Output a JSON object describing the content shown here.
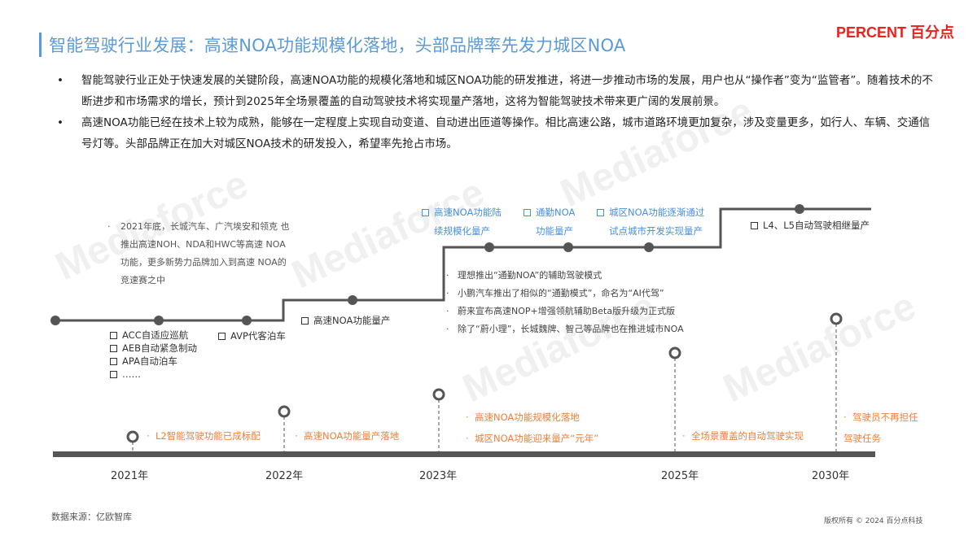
{
  "header": {
    "title": "智能驾驶行业发展：高速NOA功能规模化落地，头部品牌率先发力城区NOA",
    "logo": "PERCENT 百分点"
  },
  "bullets": [
    "智能驾驶行业正处于快速发展的关键阶段，高速NOA功能的规模化落地和城区NOA功能的研发推进，将进一步推动市场的发展，用户也从“操作者”变为“监管者”。随着技术的不断进步和市场需求的增长，预计到2025年全场景覆盖的自动驾驶技术将实现量产落地，这将为智能驾驶技术带来更广阔的发展前景。",
    "高速NOA功能已经在技术上较为成熟，能够在一定程度上实现自动变道、自动进出匝道等操作。相比高速公路，城市道路环境更加复杂，涉及变量更多，如行人、车辆、交通信号灯等。头部品牌正在加大对城区NOA技术的研发投入，希望率先抢占市场。"
  ],
  "upper": {
    "note_2021": "2021年底，长城汽车、广汽埃安和领克 也推出高速NOH、NDA和HWC等高速 NOA功能，更多新势力品牌加入到高速 NOA的竞速赛之中",
    "basic_features": [
      "ACC自适应巡航",
      "AEB自动紧急制动",
      "APA自动泊车",
      "……"
    ],
    "avp": "AVP代客泊车",
    "highway_noa": "高速NOA功能量产",
    "blue_items": [
      [
        "高速NOA功能陆",
        "续规模化量产"
      ],
      [
        "通勤NOA",
        "功能量产"
      ],
      [
        "城区NOA功能逐渐通过",
        "试点城市开发实现量产"
      ]
    ],
    "l4l5": "L4、L5自动驾驶相继量产",
    "mid_notes": [
      "理想推出“通勤NOA”的辅助驾驶模式",
      "小鹏汽车推出了相似的“通勤模式”，命名为“AI代驾”",
      "蔚来宣布高速NOP+增强领航辅助Beta版升级为正式版",
      "除了“蔚小理”，长城魏牌、智己等品牌也在推进城市NOA"
    ]
  },
  "lower": {
    "milestones": [
      {
        "year": "2021年",
        "items": [
          "L2智能驾驶功能已成标配"
        ]
      },
      {
        "year": "2022年",
        "items": [
          "高速NOA功能量产落地"
        ]
      },
      {
        "year": "2023年",
        "items": [
          "高速NOA功能规模化落地",
          "城区NOA功能迎来量产“元年”"
        ]
      },
      {
        "year": "2025年",
        "items": [
          "全场景覆盖的自动驾驶实现"
        ]
      },
      {
        "year": "2030年",
        "items": [
          "驾驶员不再担任驾驶任务"
        ]
      }
    ]
  },
  "footer": {
    "source": "数据来源：亿欧智库",
    "copyright": "版权所有 © 2024 百分点科技"
  },
  "watermark": "Mediaforce",
  "colors": {
    "title": "#5b9bd5",
    "accent_orange": "#ee7f3a",
    "accent_blue": "#4a90d9",
    "logo_red": "#e8231f",
    "line": "#555555"
  }
}
